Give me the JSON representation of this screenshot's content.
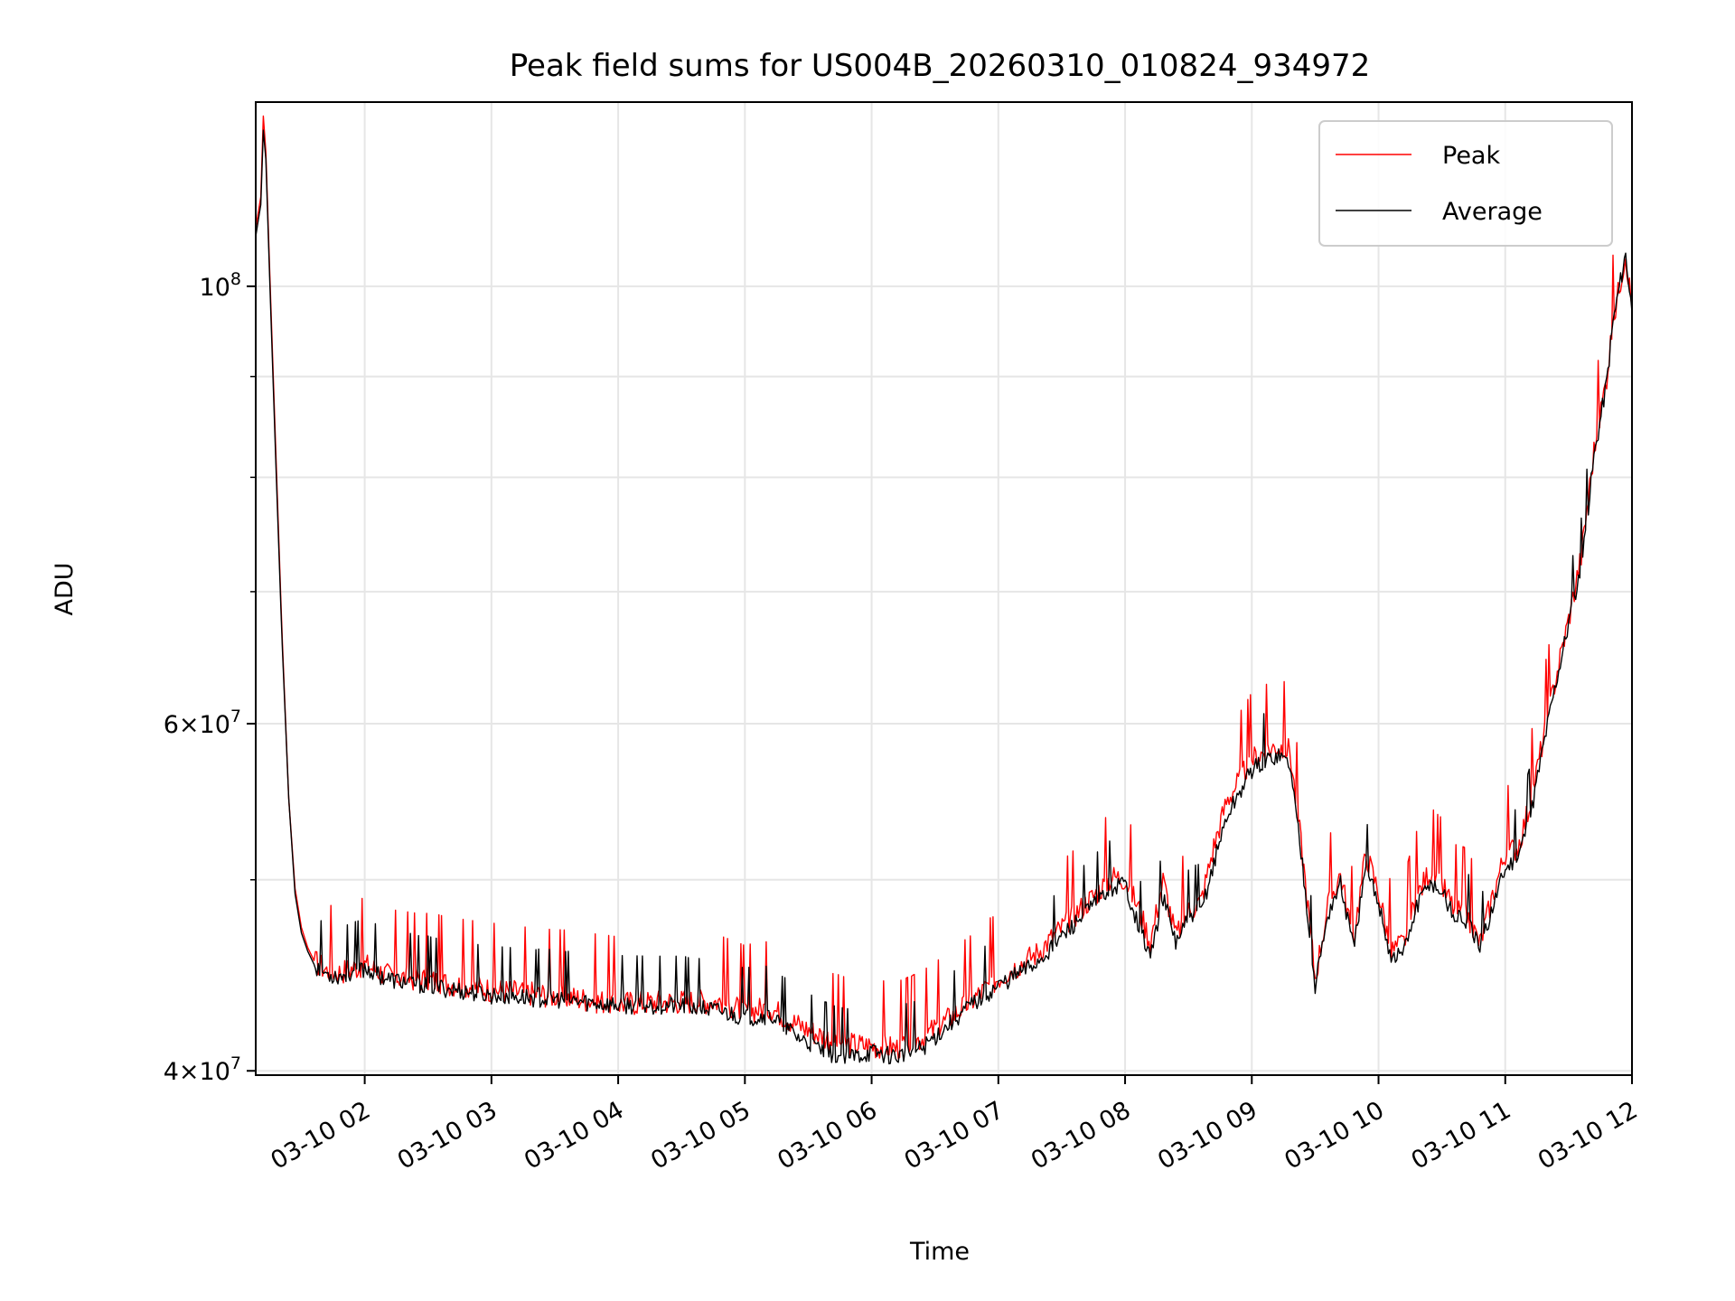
{
  "chart_data": {
    "type": "line",
    "title": "Peak field sums for US004B_20260310_010824_934972",
    "xlabel": "Time",
    "ylabel": "ADU",
    "yscale": "log",
    "grid": true,
    "legend_position": "top-right",
    "xlim": [
      1.14,
      12.0
    ],
    "ylim": [
      39800000,
      124000000
    ],
    "x_ticks": [
      {
        "x": 2,
        "label": "03-10 02"
      },
      {
        "x": 3,
        "label": "03-10 03"
      },
      {
        "x": 4,
        "label": "03-10 04"
      },
      {
        "x": 5,
        "label": "03-10 05"
      },
      {
        "x": 6,
        "label": "03-10 06"
      },
      {
        "x": 7,
        "label": "03-10 07"
      },
      {
        "x": 8,
        "label": "03-10 08"
      },
      {
        "x": 9,
        "label": "03-10 09"
      },
      {
        "x": 10,
        "label": "03-10 10"
      },
      {
        "x": 11,
        "label": "03-10 11"
      },
      {
        "x": 12,
        "label": "03-10 12"
      }
    ],
    "y_ticks_major": [
      {
        "y": 40000000,
        "mantissa": "4",
        "exp": "7"
      },
      {
        "y": 60000000,
        "mantissa": "6",
        "exp": "7"
      },
      {
        "y": 100000000,
        "mantissa": "",
        "exp": "8"
      }
    ],
    "y_ticks_minor": [
      50000000,
      70000000,
      80000000,
      90000000
    ],
    "series": [
      {
        "name": "Peak",
        "color": "#ff0000",
        "x": [
          1.14,
          1.16,
          1.18,
          1.2,
          1.22,
          1.25,
          1.3,
          1.35,
          1.4,
          1.45,
          1.5,
          1.55,
          1.6,
          1.7,
          1.8,
          2.0,
          2.2,
          2.5,
          3.0,
          3.5,
          4.0,
          4.5,
          4.8,
          5.0,
          5.2,
          5.4,
          5.6,
          5.8,
          6.0,
          6.2,
          6.4,
          6.6,
          6.8,
          7.0,
          7.3,
          7.6,
          7.9,
          8.0,
          8.1,
          8.2,
          8.3,
          8.4,
          8.5,
          8.6,
          8.7,
          8.8,
          9.0,
          9.2,
          9.3,
          9.4,
          9.5,
          9.6,
          9.7,
          9.8,
          9.9,
          10.0,
          10.1,
          10.2,
          10.3,
          10.4,
          10.5,
          10.6,
          10.7,
          10.8,
          10.9,
          11.0,
          11.1,
          11.2,
          11.3,
          11.4,
          11.5,
          11.6,
          11.7,
          11.8,
          11.85,
          11.9,
          11.95,
          12.0
        ],
        "y": [
          107000000,
          109000000,
          111000000,
          122000000,
          117000000,
          102000000,
          82000000,
          66000000,
          55000000,
          49500000,
          47300000,
          46200000,
          45500000,
          45000000,
          44900000,
          45300000,
          44700000,
          44500000,
          44000000,
          43700000,
          43300000,
          43400000,
          43400000,
          42900000,
          43100000,
          42300000,
          41700000,
          41300000,
          41200000,
          41100000,
          41600000,
          42500000,
          43500000,
          44600000,
          45900000,
          48000000,
          50200000,
          50100000,
          48500000,
          46500000,
          50000000,
          46800000,
          48200000,
          48800000,
          52000000,
          54800000,
          57600000,
          58500000,
          58200000,
          51500000,
          44600000,
          48500000,
          50400000,
          46600000,
          51600000,
          49300000,
          46000000,
          46500000,
          49000000,
          50500000,
          49700000,
          48300000,
          48000000,
          46400000,
          49100000,
          51600000,
          52000000,
          54800000,
          59000000,
          63400000,
          67800000,
          73000000,
          82500000,
          90000000,
          96000000,
          100000000,
          104000000,
          97500000
        ]
      },
      {
        "name": "Average",
        "color": "#000000",
        "x": [
          1.14,
          1.16,
          1.18,
          1.2,
          1.22,
          1.25,
          1.3,
          1.35,
          1.4,
          1.45,
          1.5,
          1.55,
          1.6,
          1.7,
          1.8,
          2.0,
          2.2,
          2.5,
          3.0,
          3.5,
          4.0,
          4.5,
          4.8,
          5.0,
          5.2,
          5.4,
          5.6,
          5.8,
          6.0,
          6.2,
          6.4,
          6.6,
          6.8,
          7.0,
          7.3,
          7.6,
          7.9,
          8.0,
          8.1,
          8.2,
          8.3,
          8.4,
          8.5,
          8.6,
          8.7,
          8.8,
          9.0,
          9.2,
          9.3,
          9.4,
          9.5,
          9.6,
          9.7,
          9.8,
          9.9,
          10.0,
          10.1,
          10.2,
          10.3,
          10.4,
          10.5,
          10.6,
          10.7,
          10.8,
          10.9,
          11.0,
          11.1,
          11.2,
          11.3,
          11.4,
          11.5,
          11.6,
          11.7,
          11.8,
          11.85,
          11.9,
          11.95,
          12.0
        ],
        "y": [
          106000000,
          108000000,
          110000000,
          120000000,
          116000000,
          101000000,
          81000000,
          65500000,
          55000000,
          49200000,
          47000000,
          46000000,
          45300000,
          44800000,
          44700000,
          45100000,
          44500000,
          44200000,
          43700000,
          43500000,
          43200000,
          43200000,
          42900000,
          42600000,
          42700000,
          41700000,
          41000000,
          40600000,
          40900000,
          40700000,
          41100000,
          42200000,
          43300000,
          44200000,
          45400000,
          47500000,
          49600000,
          49800000,
          47600000,
          45700000,
          49000000,
          46500000,
          47800000,
          48200000,
          51000000,
          53800000,
          56900000,
          57900000,
          57300000,
          51000000,
          44200000,
          48000000,
          49800000,
          46200000,
          50600000,
          48800000,
          45600000,
          46000000,
          48400000,
          49900000,
          49300000,
          47900000,
          47700000,
          46100000,
          48500000,
          50700000,
          51400000,
          54000000,
          58500000,
          63000000,
          67500000,
          72000000,
          82000000,
          89500000,
          96000000,
          100000000,
          104000000,
          97000000
        ]
      }
    ]
  }
}
